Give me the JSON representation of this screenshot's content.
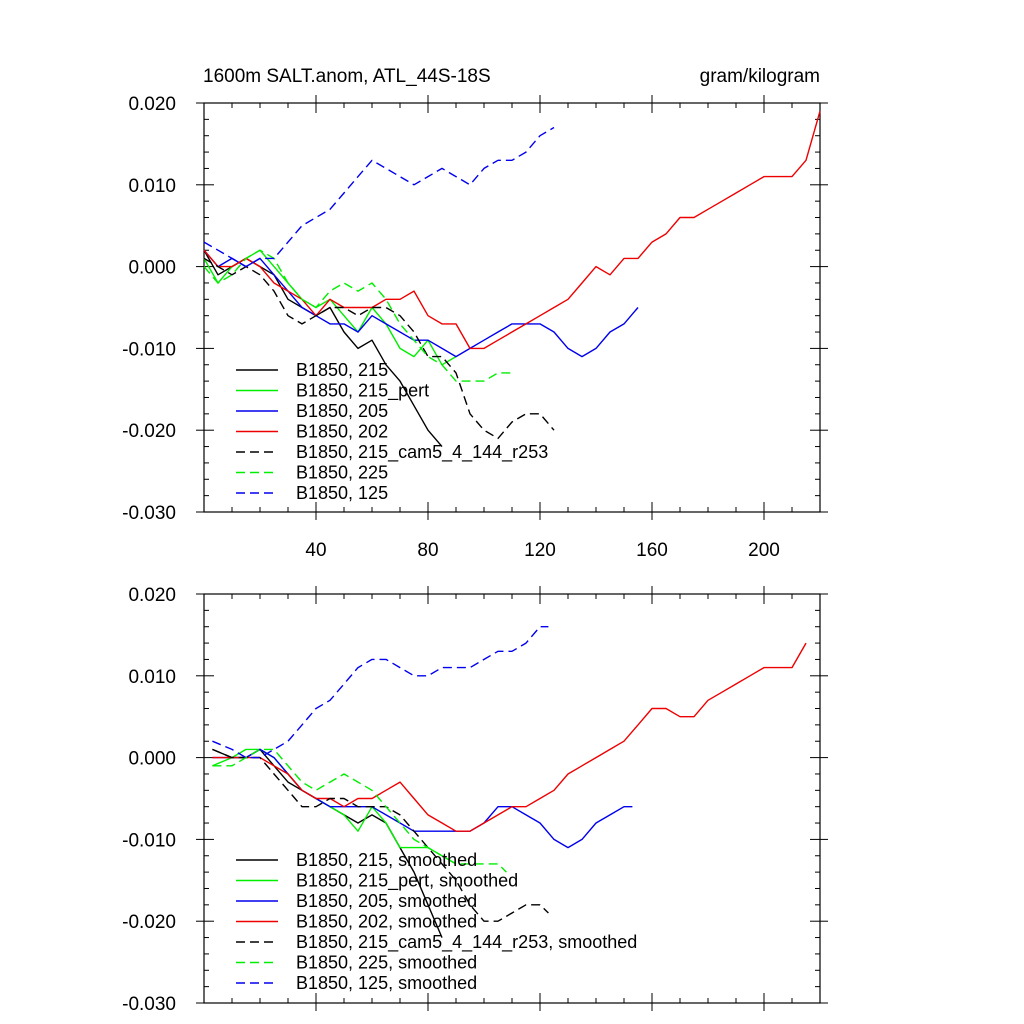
{
  "colors": {
    "black": "#000000",
    "green": "#00ee00",
    "blue": "#0000ee",
    "red": "#ee0000"
  },
  "chart_data": [
    {
      "type": "line",
      "title": "1600m SALT.anom, ATL_44S-18S",
      "units": "gram/kilogram",
      "xlim": [
        0,
        220
      ],
      "ylim": [
        -0.03,
        0.02
      ],
      "xticks": [
        40,
        80,
        120,
        160,
        200
      ],
      "ytick_labels": [
        "0.020",
        "0.010",
        "0.000",
        "-0.010",
        "-0.020",
        "-0.030"
      ],
      "ytick_values": [
        0.02,
        0.01,
        0.0,
        -0.01,
        -0.02,
        -0.03
      ],
      "xtick_labels": [
        "40",
        "80",
        "120",
        "160",
        "200"
      ],
      "legend_position": "lower-left",
      "series": [
        {
          "name": "B1850, 215",
          "color": "black",
          "dash": "solid",
          "x": [
            0,
            5,
            10,
            15,
            20,
            25,
            30,
            35,
            40,
            45,
            50,
            55,
            60,
            65,
            70,
            75,
            80,
            85
          ],
          "y": [
            0.002,
            -0.001,
            0.0,
            0.001,
            0.0,
            -0.001,
            -0.004,
            -0.005,
            -0.006,
            -0.005,
            -0.008,
            -0.01,
            -0.009,
            -0.012,
            -0.014,
            -0.017,
            -0.02,
            -0.022
          ]
        },
        {
          "name": "B1850, 215_pert",
          "color": "green",
          "dash": "solid",
          "x": [
            0,
            5,
            10,
            15,
            20,
            25,
            30,
            35,
            40,
            45,
            50,
            55,
            60,
            65,
            70,
            75,
            80,
            85,
            90
          ],
          "y": [
            0.001,
            -0.002,
            0.0,
            0.001,
            0.002,
            0.0,
            -0.002,
            -0.004,
            -0.005,
            -0.004,
            -0.006,
            -0.008,
            -0.005,
            -0.007,
            -0.01,
            -0.011,
            -0.009,
            -0.012,
            -0.011
          ]
        },
        {
          "name": "B1850, 205",
          "color": "blue",
          "dash": "solid",
          "x": [
            0,
            5,
            10,
            15,
            20,
            25,
            30,
            35,
            40,
            45,
            50,
            55,
            60,
            65,
            70,
            75,
            80,
            85,
            90,
            95,
            100,
            105,
            110,
            115,
            120,
            125,
            130,
            135,
            140,
            145,
            150,
            155
          ],
          "y": [
            0.002,
            0.0,
            0.001,
            0.0,
            0.001,
            -0.001,
            -0.003,
            -0.005,
            -0.006,
            -0.007,
            -0.007,
            -0.008,
            -0.006,
            -0.007,
            -0.008,
            -0.009,
            -0.009,
            -0.01,
            -0.011,
            -0.01,
            -0.009,
            -0.008,
            -0.007,
            -0.007,
            -0.007,
            -0.008,
            -0.01,
            -0.011,
            -0.01,
            -0.008,
            -0.007,
            -0.005
          ]
        },
        {
          "name": "B1850, 202",
          "color": "red",
          "dash": "solid",
          "x": [
            0,
            5,
            10,
            15,
            20,
            25,
            30,
            35,
            40,
            45,
            50,
            55,
            60,
            65,
            70,
            75,
            80,
            85,
            90,
            95,
            100,
            105,
            110,
            115,
            120,
            125,
            130,
            135,
            140,
            145,
            150,
            155,
            160,
            165,
            170,
            175,
            180,
            185,
            190,
            195,
            200,
            205,
            210,
            215,
            220
          ],
          "y": [
            0.002,
            0.0,
            0.0,
            0.001,
            0.0,
            -0.002,
            -0.003,
            -0.004,
            -0.006,
            -0.004,
            -0.005,
            -0.005,
            -0.005,
            -0.004,
            -0.004,
            -0.003,
            -0.006,
            -0.007,
            -0.007,
            -0.01,
            -0.01,
            -0.009,
            -0.008,
            -0.007,
            -0.006,
            -0.005,
            -0.004,
            -0.002,
            0.0,
            -0.001,
            0.001,
            0.001,
            0.003,
            0.004,
            0.006,
            0.006,
            0.007,
            0.008,
            0.009,
            0.01,
            0.011,
            0.011,
            0.011,
            0.013,
            0.019
          ]
        },
        {
          "name": "B1850, 215_cam5_4_144_r253",
          "color": "black",
          "dash": "dashed",
          "x": [
            0,
            5,
            10,
            15,
            20,
            25,
            30,
            35,
            40,
            45,
            50,
            55,
            60,
            65,
            70,
            75,
            80,
            85,
            90,
            95,
            100,
            105,
            110,
            115,
            120,
            125
          ],
          "y": [
            0.001,
            0.0,
            -0.001,
            0.0,
            -0.001,
            -0.003,
            -0.006,
            -0.007,
            -0.006,
            -0.005,
            -0.005,
            -0.006,
            -0.005,
            -0.005,
            -0.006,
            -0.008,
            -0.011,
            -0.011,
            -0.013,
            -0.018,
            -0.02,
            -0.021,
            -0.019,
            -0.018,
            -0.018,
            -0.02
          ]
        },
        {
          "name": "B1850, 225",
          "color": "green",
          "dash": "dashed",
          "x": [
            0,
            5,
            10,
            15,
            20,
            25,
            30,
            35,
            40,
            45,
            50,
            55,
            60,
            65,
            70,
            75,
            80,
            85,
            90,
            95,
            100,
            105,
            110
          ],
          "y": [
            0.0,
            -0.002,
            -0.001,
            0.001,
            0.002,
            0.001,
            -0.002,
            -0.004,
            -0.005,
            -0.003,
            -0.002,
            -0.003,
            -0.002,
            -0.004,
            -0.007,
            -0.009,
            -0.011,
            -0.012,
            -0.014,
            -0.014,
            -0.014,
            -0.013,
            -0.013
          ]
        },
        {
          "name": "B1850, 125",
          "color": "blue",
          "dash": "dashed",
          "x": [
            0,
            5,
            10,
            15,
            20,
            25,
            30,
            35,
            40,
            45,
            50,
            55,
            60,
            65,
            70,
            75,
            80,
            85,
            90,
            95,
            100,
            105,
            110,
            115,
            120,
            125
          ],
          "y": [
            0.003,
            0.002,
            0.001,
            0.0,
            0.001,
            0.001,
            0.003,
            0.005,
            0.006,
            0.007,
            0.009,
            0.011,
            0.013,
            0.012,
            0.011,
            0.01,
            0.011,
            0.012,
            0.011,
            0.01,
            0.012,
            0.013,
            0.013,
            0.014,
            0.016,
            0.017
          ]
        }
      ]
    },
    {
      "type": "line",
      "xlim": [
        0,
        220
      ],
      "ylim": [
        -0.03,
        0.02
      ],
      "ytick_labels": [
        "0.020",
        "0.010",
        "0.000",
        "-0.010",
        "-0.020",
        "-0.030"
      ],
      "ytick_values": [
        0.02,
        0.01,
        0.0,
        -0.01,
        -0.02,
        -0.03
      ],
      "xticks": [
        40,
        80,
        120,
        160,
        200
      ],
      "legend_position": "lower-left",
      "series": [
        {
          "name": "B1850, 215, smoothed",
          "color": "black",
          "dash": "solid",
          "x": [
            3,
            10,
            15,
            20,
            25,
            30,
            35,
            40,
            45,
            50,
            55,
            60,
            65,
            70,
            75,
            80,
            85
          ],
          "y": [
            0.001,
            0.0,
            0.0,
            0.001,
            -0.001,
            -0.003,
            -0.004,
            -0.005,
            -0.006,
            -0.007,
            -0.008,
            -0.007,
            -0.008,
            -0.011,
            -0.014,
            -0.018,
            -0.022
          ]
        },
        {
          "name": "B1850, 215_pert, smoothed",
          "color": "green",
          "dash": "solid",
          "x": [
            3,
            10,
            15,
            20,
            25,
            30,
            35,
            40,
            45,
            50,
            55,
            60,
            65,
            70,
            75,
            80,
            85,
            90
          ],
          "y": [
            -0.001,
            0.0,
            0.001,
            0.001,
            0.0,
            -0.002,
            -0.004,
            -0.005,
            -0.006,
            -0.007,
            -0.009,
            -0.006,
            -0.008,
            -0.011,
            -0.011,
            -0.011,
            -0.012,
            -0.013
          ]
        },
        {
          "name": "B1850, 205, smoothed",
          "color": "blue",
          "dash": "solid",
          "x": [
            3,
            10,
            15,
            20,
            25,
            30,
            35,
            40,
            45,
            50,
            55,
            60,
            65,
            70,
            75,
            80,
            85,
            90,
            95,
            100,
            105,
            110,
            115,
            120,
            125,
            130,
            135,
            140,
            145,
            150,
            153
          ],
          "y": [
            0.0,
            0.0,
            0.0,
            0.001,
            0.0,
            -0.002,
            -0.004,
            -0.005,
            -0.006,
            -0.006,
            -0.006,
            -0.006,
            -0.007,
            -0.008,
            -0.009,
            -0.009,
            -0.009,
            -0.009,
            -0.009,
            -0.008,
            -0.006,
            -0.006,
            -0.007,
            -0.008,
            -0.01,
            -0.011,
            -0.01,
            -0.008,
            -0.007,
            -0.006,
            -0.006
          ]
        },
        {
          "name": "B1850, 202, smoothed",
          "color": "red",
          "dash": "solid",
          "x": [
            3,
            10,
            15,
            20,
            25,
            30,
            35,
            40,
            45,
            50,
            55,
            60,
            65,
            70,
            75,
            80,
            85,
            90,
            95,
            100,
            105,
            110,
            115,
            120,
            125,
            130,
            135,
            140,
            145,
            150,
            155,
            160,
            165,
            170,
            175,
            180,
            185,
            190,
            195,
            200,
            205,
            210,
            215
          ],
          "y": [
            0.0,
            0.0,
            0.0,
            0.0,
            -0.001,
            -0.002,
            -0.004,
            -0.005,
            -0.005,
            -0.006,
            -0.005,
            -0.005,
            -0.004,
            -0.003,
            -0.005,
            -0.007,
            -0.008,
            -0.009,
            -0.009,
            -0.008,
            -0.007,
            -0.006,
            -0.006,
            -0.005,
            -0.004,
            -0.002,
            -0.001,
            0.0,
            0.001,
            0.002,
            0.004,
            0.006,
            0.006,
            0.005,
            0.005,
            0.007,
            0.008,
            0.009,
            0.01,
            0.011,
            0.011,
            0.011,
            0.014
          ]
        },
        {
          "name": "B1850, 215_cam5_4_144_r253, smoothed",
          "color": "black",
          "dash": "dashed",
          "x": [
            3,
            10,
            15,
            20,
            25,
            30,
            35,
            40,
            45,
            50,
            55,
            60,
            65,
            70,
            75,
            80,
            85,
            90,
            95,
            100,
            105,
            110,
            115,
            120,
            123
          ],
          "y": [
            0.001,
            0.0,
            0.0,
            0.0,
            -0.002,
            -0.004,
            -0.006,
            -0.006,
            -0.005,
            -0.005,
            -0.006,
            -0.006,
            -0.006,
            -0.007,
            -0.009,
            -0.011,
            -0.013,
            -0.015,
            -0.018,
            -0.02,
            -0.02,
            -0.019,
            -0.018,
            -0.018,
            -0.019
          ]
        },
        {
          "name": "B1850, 225, smoothed",
          "color": "green",
          "dash": "dashed",
          "x": [
            3,
            10,
            15,
            20,
            25,
            30,
            35,
            40,
            45,
            50,
            55,
            60,
            65,
            70,
            75,
            80,
            85,
            90,
            95,
            100,
            105,
            108
          ],
          "y": [
            -0.001,
            -0.001,
            0.0,
            0.001,
            0.001,
            -0.001,
            -0.003,
            -0.004,
            -0.003,
            -0.002,
            -0.003,
            -0.004,
            -0.006,
            -0.008,
            -0.01,
            -0.011,
            -0.012,
            -0.013,
            -0.013,
            -0.013,
            -0.013,
            -0.014
          ]
        },
        {
          "name": "B1850, 125, smoothed",
          "color": "blue",
          "dash": "dashed",
          "x": [
            3,
            10,
            15,
            20,
            25,
            30,
            35,
            40,
            45,
            50,
            55,
            60,
            65,
            70,
            75,
            80,
            85,
            90,
            95,
            100,
            105,
            110,
            115,
            120,
            123
          ],
          "y": [
            0.002,
            0.001,
            0.0,
            0.0,
            0.001,
            0.002,
            0.004,
            0.006,
            0.007,
            0.009,
            0.011,
            0.012,
            0.012,
            0.011,
            0.01,
            0.01,
            0.011,
            0.011,
            0.011,
            0.012,
            0.013,
            0.013,
            0.014,
            0.016,
            0.016
          ]
        }
      ]
    }
  ]
}
